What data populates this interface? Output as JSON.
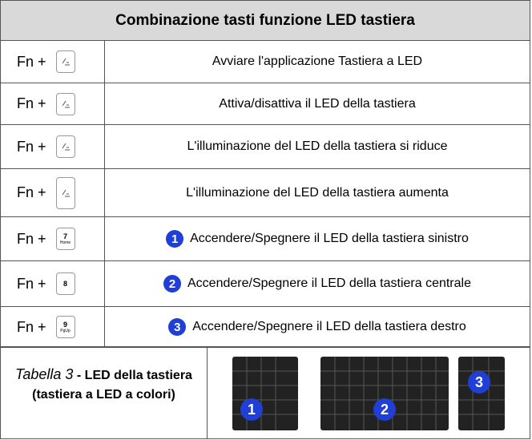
{
  "header": {
    "title": "Combinazione tasti funzione LED tastiera"
  },
  "rows": [
    {
      "fn": "Fn +",
      "text": "Avviare l'applicazione Tastiera a LED"
    },
    {
      "fn": "Fn +",
      "text": "Attiva/disattiva il LED della tastiera"
    },
    {
      "fn": "Fn +",
      "text": "L'illuminazione del LED della tastiera si riduce"
    },
    {
      "fn": "Fn +",
      "text": "L'illuminazione del LED della tastiera aumenta"
    },
    {
      "fn": "Fn +",
      "key": [
        "7",
        "Home"
      ],
      "badge": "1",
      "text": "Accendere/Spegnere il LED della tastiera sinistro"
    },
    {
      "fn": "Fn +",
      "key": [
        "8"
      ],
      "badge": "2",
      "text": "Accendere/Spegnere il LED della tastiera centrale"
    },
    {
      "fn": "Fn +",
      "key": [
        "9",
        "PgUp"
      ],
      "badge": "3",
      "text": "Accendere/Spegnere il LED della tastiera destro"
    }
  ],
  "caption": {
    "label": "Tabella 3",
    "text": "- LED della tastiera (tastiera a LED a colori)"
  },
  "figure": {
    "labels": [
      "1",
      "2",
      "3"
    ]
  }
}
